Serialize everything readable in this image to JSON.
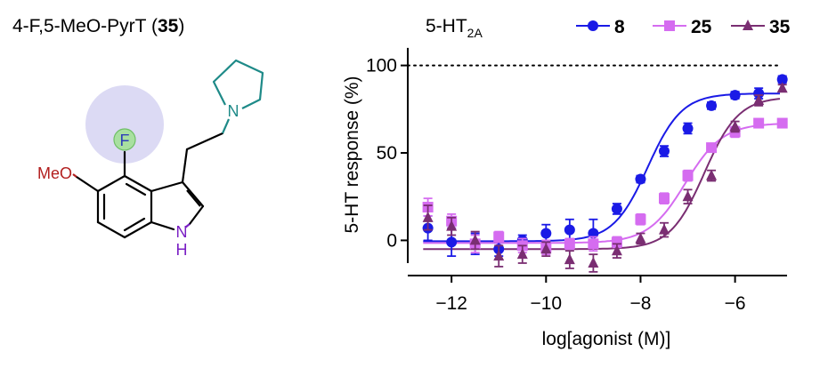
{
  "compound": {
    "name_prefix": "4-F,5-MeO-PyrT (",
    "number": "35",
    "name_suffix": ")",
    "atom_labels": {
      "fluorine": "F",
      "methoxy": "MeO",
      "nitrogen_amine": "N",
      "nitrogen_indole": "N",
      "hydrogen_indole": "H"
    },
    "colors": {
      "fluorine_halo": "#dcdaf4",
      "fluorine_circle": "#a8e0a0",
      "fluorine_text": "#2f3fb8",
      "methoxy": "#b21e1e",
      "amine": "#1e8a88",
      "indole_nh": "#7a1fc4",
      "bonds": "#000000"
    }
  },
  "chart_data": {
    "type": "scatter",
    "title": "5-HT",
    "title_subscript": "2A",
    "xlabel": "log[agonist (M)]",
    "ylabel": "5-HT response (%)",
    "xlim": [
      -12.7,
      -4.9
    ],
    "ylim": [
      -13,
      112
    ],
    "xticks": [
      -12,
      -10,
      -8,
      -6
    ],
    "xtick_labels": [
      "−12",
      "−10",
      "−8",
      "−6"
    ],
    "yticks": [
      0,
      50,
      100
    ],
    "ytick_labels": [
      "0",
      "50",
      "100"
    ],
    "reference_line": {
      "y": 100,
      "style": "dotted"
    },
    "grid": false,
    "legend_position": "top-right",
    "x": [
      -12.5,
      -12,
      -11.5,
      -11,
      -10.5,
      -10,
      -9.5,
      -9,
      -8.5,
      -8,
      -7.5,
      -7,
      -6.5,
      -6,
      -5.5,
      -5
    ],
    "series": [
      {
        "name": "8",
        "color": "#1a1ae6",
        "marker": "circle",
        "values": [
          7,
          -1,
          -2,
          -5,
          0,
          4,
          6,
          4,
          18,
          35,
          51,
          64,
          77,
          83,
          84,
          92
        ],
        "errors": [
          7,
          8,
          6,
          4,
          3,
          5,
          6,
          8,
          3,
          2,
          3,
          3,
          2,
          2,
          3,
          2
        ],
        "fit": {
          "bottom": -0.5,
          "top": 84,
          "logEC50": -7.85,
          "hill": 1.2
        }
      },
      {
        "name": "25",
        "color": "#d56cf0",
        "marker": "square",
        "values": [
          19,
          11,
          -2,
          2,
          -3,
          -4,
          -2,
          -2,
          -1,
          12,
          24,
          37,
          53,
          62,
          67,
          67
        ],
        "errors": [
          5,
          4,
          5,
          3,
          4,
          4,
          3,
          4,
          3,
          3,
          3,
          3,
          2,
          3,
          2,
          2
        ],
        "fit": {
          "bottom": -1.5,
          "top": 67,
          "logEC50": -7.05,
          "hill": 1.1
        }
      },
      {
        "name": "35",
        "color": "#7a2e72",
        "marker": "triangle",
        "values": [
          13,
          8,
          0,
          -9,
          -8,
          -5,
          -11,
          -13,
          -6,
          1,
          6,
          25,
          37,
          65,
          80,
          87
        ],
        "errors": [
          7,
          5,
          5,
          6,
          5,
          4,
          5,
          5,
          4,
          3,
          4,
          4,
          3,
          3,
          3,
          2
        ],
        "fit": {
          "bottom": -5,
          "top": 82,
          "logEC50": -6.65,
          "hill": 1.2
        }
      }
    ]
  }
}
